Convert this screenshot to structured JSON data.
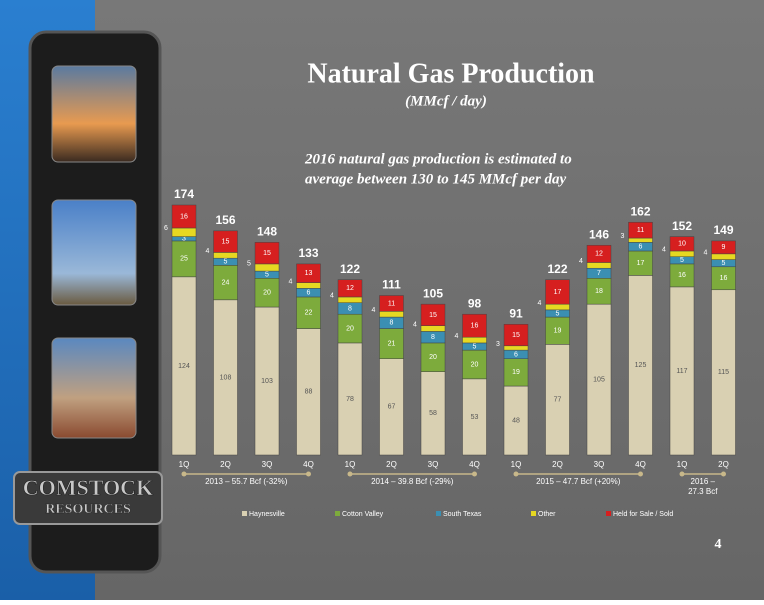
{
  "logo": [
    "COMSTOCK",
    "RESOURCES"
  ],
  "page_number": "4",
  "chart_data": {
    "type": "stacked_bar",
    "title": "Natural Gas Production",
    "subtitle": "(MMcf / day)",
    "annotation": [
      "2016 natural gas production is estimated to",
      "average between 130 to 145 MMcf  per day"
    ],
    "groups": [
      {
        "label": "2013 – 55.7 Bcf (-32%)",
        "categories": [
          "1Q",
          "2Q",
          "3Q",
          "4Q"
        ]
      },
      {
        "label": "2014 – 39.8 Bcf (-29%)",
        "categories": [
          "1Q",
          "2Q",
          "3Q",
          "4Q"
        ]
      },
      {
        "label": "2015 – 47.7 Bcf (+20%)",
        "categories": [
          "1Q",
          "2Q",
          "3Q",
          "4Q"
        ]
      },
      {
        "label": "2016 – 27.3 Bcf",
        "categories": [
          "1Q",
          "2Q"
        ]
      }
    ],
    "series": [
      {
        "name": "Haynesville",
        "color": "#d9d0b2",
        "values": [
          124,
          108,
          103,
          88,
          78,
          67,
          58,
          53,
          48,
          77,
          105,
          125,
          117,
          115
        ]
      },
      {
        "name": "Cotton Valley",
        "color": "#7dab3c",
        "values": [
          25,
          24,
          20,
          22,
          20,
          21,
          20,
          20,
          19,
          19,
          18,
          17,
          16,
          16
        ]
      },
      {
        "name": "South Texas",
        "color": "#3b8fb2",
        "values": [
          3,
          5,
          5,
          6,
          8,
          8,
          8,
          5,
          6,
          5,
          7,
          6,
          5,
          5
        ]
      },
      {
        "name": "Other",
        "color": "#e6d822",
        "values": [
          6,
          4,
          5,
          4,
          4,
          4,
          4,
          4,
          3,
          4,
          4,
          3,
          4,
          4
        ]
      },
      {
        "name": "Held for Sale / Sold",
        "color": "#d61f1f",
        "values": [
          16,
          15,
          15,
          13,
          12,
          11,
          15,
          16,
          15,
          17,
          12,
          11,
          10,
          9
        ]
      }
    ],
    "totals": [
      174,
      156,
      148,
      133,
      122,
      111,
      105,
      98,
      91,
      122,
      146,
      162,
      152,
      149
    ]
  }
}
